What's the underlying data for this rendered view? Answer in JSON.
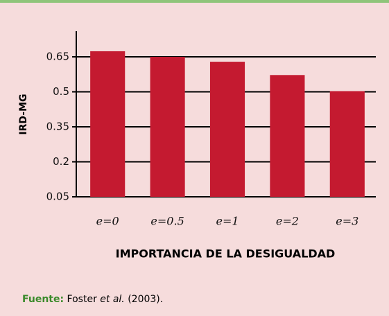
{
  "chart_data": {
    "type": "bar",
    "y_label": "IRD-MG",
    "x_label": "IMPORTANCIA DE LA DESIGUALDAD",
    "categories": [
      "e=0",
      "e=0.5",
      "e=1",
      "e=2",
      "e=3"
    ],
    "values": [
      0.674,
      0.65,
      0.629,
      0.572,
      0.503
    ],
    "color": "#c41a30",
    "ylim": [
      0.05,
      0.76
    ],
    "yticks": [
      0.05,
      0.2,
      0.35,
      0.5,
      0.65
    ],
    "grid": true
  },
  "source": {
    "label": "Fuente:",
    "author": "Foster",
    "etal": "et al.",
    "year": "(2003)."
  }
}
